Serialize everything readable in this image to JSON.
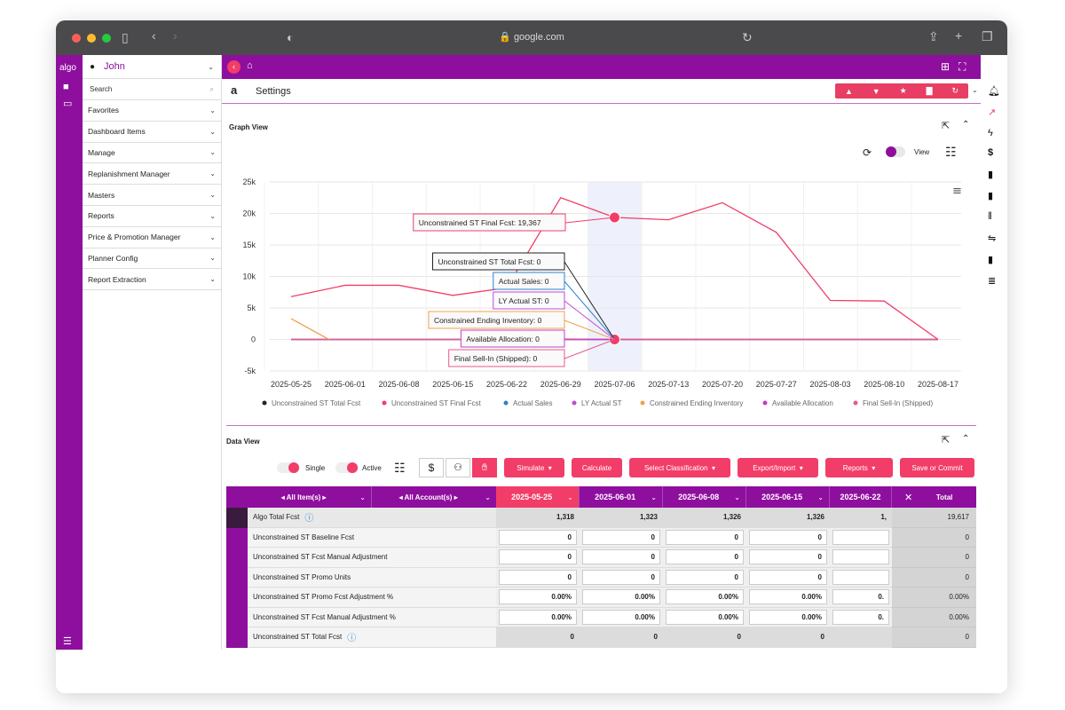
{
  "browser": {
    "url": "google.com"
  },
  "app": {
    "logo": "algo",
    "user": "John",
    "search_placeholder": "Search",
    "page_title": "Settings",
    "page_logo": "a"
  },
  "sidebar": {
    "items": [
      {
        "label": "Favorites"
      },
      {
        "label": "Dashboard Items"
      },
      {
        "label": "Manage"
      },
      {
        "label": "Replanishment Manager"
      },
      {
        "label": "Masters"
      },
      {
        "label": "Reports"
      },
      {
        "label": "Price & Promotion Manager"
      },
      {
        "label": "Planner Config"
      },
      {
        "label": "Report Extraction"
      }
    ]
  },
  "graph": {
    "section_title": "Graph View",
    "view_label": "View"
  },
  "chart_data": {
    "type": "line",
    "x": [
      "2025-05-25",
      "2025-06-01",
      "2025-06-08",
      "2025-06-15",
      "2025-06-22",
      "2025-06-29",
      "2025-07-06",
      "2025-07-13",
      "2025-07-20",
      "2025-07-27",
      "2025-08-03",
      "2025-08-10",
      "2025-08-17"
    ],
    "y_ticks": [
      "25k",
      "20k",
      "15k",
      "10k",
      "5k",
      "0",
      "-5k"
    ],
    "ylim": [
      -5000,
      25000
    ],
    "series": [
      {
        "name": "Unconstrained ST Total Fcst",
        "color": "#222222",
        "values": [
          0,
          0,
          0,
          0,
          0,
          0,
          0,
          0,
          0,
          0,
          0,
          0,
          0
        ]
      },
      {
        "name": "Unconstrained ST Final Fcst",
        "color": "#f23d68",
        "values": [
          6800,
          8600,
          8600,
          7000,
          8200,
          22500,
          19367,
          19000,
          21700,
          17000,
          6200,
          6100,
          0
        ]
      },
      {
        "name": "Actual Sales",
        "color": "#2f80d0",
        "values": [
          0,
          0,
          0,
          0,
          0,
          0,
          0,
          0,
          0,
          0,
          0,
          0,
          0
        ]
      },
      {
        "name": "LY Actual ST",
        "color": "#c04ad8",
        "values": [
          0,
          0,
          0,
          0,
          0,
          0,
          0,
          0,
          0,
          0,
          0,
          0,
          0
        ]
      },
      {
        "name": "Constrained Ending Inventory",
        "color": "#f0a04a",
        "values": [
          3300,
          0,
          0,
          0,
          0,
          0,
          0,
          0,
          0,
          0,
          0,
          0,
          0
        ]
      },
      {
        "name": "Available Allocation",
        "color": "#c83bc0",
        "values": [
          0,
          0,
          0,
          0,
          0,
          0,
          0,
          0,
          0,
          0,
          0,
          0,
          0
        ]
      },
      {
        "name": "Final Sell-In (Shipped)",
        "color": "#e85a8a",
        "values": [
          0,
          0,
          0,
          0,
          0,
          0,
          0,
          0,
          0,
          0,
          0,
          0,
          0
        ]
      }
    ],
    "tooltips": [
      {
        "text": "Unconstrained ST Final Fcst: 19,367",
        "color": "#f23d68"
      },
      {
        "text": "Unconstrained ST Total Fcst: 0",
        "color": "#222222"
      },
      {
        "text": "Actual Sales: 0",
        "color": "#2f80d0"
      },
      {
        "text": "LY Actual ST: 0",
        "color": "#c04ad8"
      },
      {
        "text": "Constrained Ending Inventory: 0",
        "color": "#f0a04a"
      },
      {
        "text": "Available Allocation: 0",
        "color": "#c83bc0"
      },
      {
        "text": "Final Sell-In (Shipped): 0",
        "color": "#e85a8a"
      }
    ],
    "highlight_x": "2025-07-06",
    "legend_position": "bottom"
  },
  "dataview": {
    "section_title": "Data View",
    "single_label": "Single",
    "active_label": "Active",
    "buttons": {
      "simulate": "Simulate",
      "calculate": "Calculate",
      "select_classification": "Select Classification",
      "export_import": "Export/Import",
      "reports": "Reports",
      "save_commit": "Save or Commit"
    },
    "headers": {
      "items": "All Item(s)",
      "accounts": "All Account(s)",
      "dates": [
        "2025-05-25",
        "2025-06-01",
        "2025-06-08",
        "2025-06-15",
        "2025-06-22"
      ],
      "total": "Total"
    },
    "rows": [
      {
        "label": "Algo Total Fcst",
        "values": [
          "1,318",
          "1,323",
          "1,326",
          "1,326",
          "1,"
        ],
        "total": "19,617",
        "type": "total"
      },
      {
        "label": "Unconstrained ST Baseline Fcst",
        "values": [
          "0",
          "0",
          "0",
          "0",
          ""
        ],
        "total": "0",
        "type": "input"
      },
      {
        "label": "Unconstrained ST Fcst Manual Adjustment",
        "values": [
          "0",
          "0",
          "0",
          "0",
          ""
        ],
        "total": "0",
        "type": "input"
      },
      {
        "label": "Unconstrained ST Promo Units",
        "values": [
          "0",
          "0",
          "0",
          "0",
          ""
        ],
        "total": "0",
        "type": "input"
      },
      {
        "label": "Unconstrained ST Promo Fcst Adjustment %",
        "values": [
          "0.00%",
          "0.00%",
          "0.00%",
          "0.00%",
          "0."
        ],
        "total": "0.00%",
        "type": "input"
      },
      {
        "label": "Unconstrained ST Fcst Manual Adjustment %",
        "values": [
          "0.00%",
          "0.00%",
          "0.00%",
          "0.00%",
          "0."
        ],
        "total": "0.00%",
        "type": "input"
      },
      {
        "label": "Unconstrained ST Total Fcst",
        "values": [
          "0",
          "0",
          "0",
          "0",
          ""
        ],
        "total": "0",
        "type": "grey"
      }
    ]
  }
}
